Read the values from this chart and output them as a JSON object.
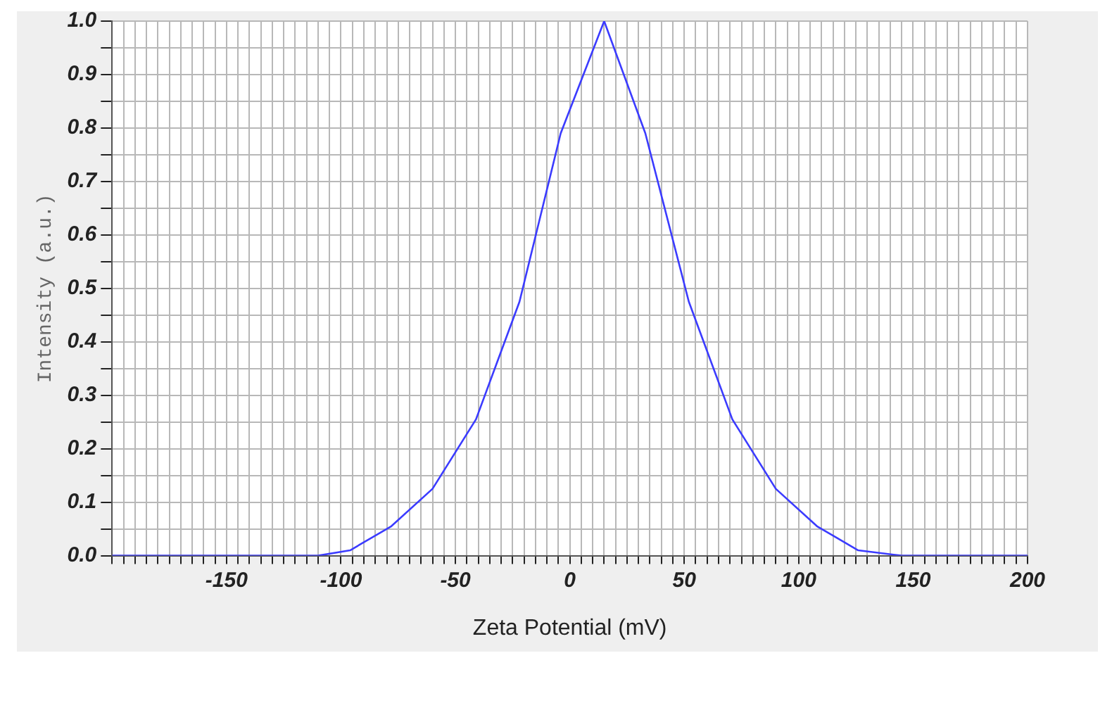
{
  "chart_data": {
    "type": "line",
    "xlabel": "Zeta Potential (mV)",
    "ylabel": "Intensity (a.u.)",
    "x": [
      -200,
      -110,
      -96,
      -78,
      -60,
      -41,
      -22,
      -4,
      15,
      33,
      52,
      71,
      90,
      108,
      126,
      145,
      200
    ],
    "series": [
      {
        "color": "#3b3bff",
        "values": [
          0,
          0,
          0.01,
          0.055,
          0.125,
          0.255,
          0.475,
          0.79,
          1.0,
          0.79,
          0.475,
          0.255,
          0.125,
          0.055,
          0.01,
          0,
          0
        ]
      }
    ],
    "xlim": [
      -200,
      200
    ],
    "xticks": [
      {
        "value": -200,
        "label": null
      },
      {
        "value": -195,
        "label": null
      },
      {
        "value": -190,
        "label": null
      },
      {
        "value": -185,
        "label": null
      },
      {
        "value": -180,
        "label": null
      },
      {
        "value": -175,
        "label": null
      },
      {
        "value": -170,
        "label": null
      },
      {
        "value": -165,
        "label": null
      },
      {
        "value": -160,
        "label": null
      },
      {
        "value": -155,
        "label": null
      },
      -150,
      {
        "value": -145,
        "label": null
      },
      {
        "value": -140,
        "label": null
      },
      {
        "value": -135,
        "label": null
      },
      {
        "value": -130,
        "label": null
      },
      {
        "value": -125,
        "label": null
      },
      {
        "value": -120,
        "label": null
      },
      {
        "value": -115,
        "label": null
      },
      {
        "value": -110,
        "label": null
      },
      {
        "value": -105,
        "label": null
      },
      -100,
      {
        "value": -95,
        "label": null
      },
      {
        "value": -90,
        "label": null
      },
      {
        "value": -85,
        "label": null
      },
      {
        "value": -80,
        "label": null
      },
      {
        "value": -75,
        "label": null
      },
      {
        "value": -70,
        "label": null
      },
      {
        "value": -65,
        "label": null
      },
      {
        "value": -60,
        "label": null
      },
      {
        "value": -55,
        "label": null
      },
      -50,
      {
        "value": -45,
        "label": null
      },
      {
        "value": -40,
        "label": null
      },
      {
        "value": -35,
        "label": null
      },
      {
        "value": -30,
        "label": null
      },
      {
        "value": -25,
        "label": null
      },
      {
        "value": -20,
        "label": null
      },
      {
        "value": -15,
        "label": null
      },
      {
        "value": -10,
        "label": null
      },
      {
        "value": -5,
        "label": null
      },
      0,
      {
        "value": 5,
        "label": null
      },
      {
        "value": 10,
        "label": null
      },
      {
        "value": 15,
        "label": null
      },
      {
        "value": 20,
        "label": null
      },
      {
        "value": 25,
        "label": null
      },
      {
        "value": 30,
        "label": null
      },
      {
        "value": 35,
        "label": null
      },
      {
        "value": 40,
        "label": null
      },
      {
        "value": 45,
        "label": null
      },
      50,
      {
        "value": 55,
        "label": null
      },
      {
        "value": 60,
        "label": null
      },
      {
        "value": 65,
        "label": null
      },
      {
        "value": 70,
        "label": null
      },
      {
        "value": 75,
        "label": null
      },
      {
        "value": 80,
        "label": null
      },
      {
        "value": 85,
        "label": null
      },
      {
        "value": 90,
        "label": null
      },
      {
        "value": 95,
        "label": null
      },
      100,
      {
        "value": 105,
        "label": null
      },
      {
        "value": 110,
        "label": null
      },
      {
        "value": 115,
        "label": null
      },
      {
        "value": 120,
        "label": null
      },
      {
        "value": 125,
        "label": null
      },
      {
        "value": 130,
        "label": null
      },
      {
        "value": 135,
        "label": null
      },
      {
        "value": 140,
        "label": null
      },
      {
        "value": 145,
        "label": null
      },
      150,
      {
        "value": 155,
        "label": null
      },
      {
        "value": 160,
        "label": null
      },
      {
        "value": 165,
        "label": null
      },
      {
        "value": 170,
        "label": null
      },
      {
        "value": 175,
        "label": null
      },
      {
        "value": 180,
        "label": null
      },
      {
        "value": 185,
        "label": null
      },
      {
        "value": 190,
        "label": null
      },
      {
        "value": 195,
        "label": null
      },
      200
    ],
    "ylim": [
      0,
      1
    ],
    "yticks": [
      {
        "value": 0,
        "label": "0.0"
      },
      {
        "value": 0.05,
        "label": null
      },
      {
        "value": 0.1,
        "label": "0.1"
      },
      {
        "value": 0.15,
        "label": null
      },
      {
        "value": 0.2,
        "label": "0.2"
      },
      {
        "value": 0.25,
        "label": null
      },
      {
        "value": 0.3,
        "label": "0.3"
      },
      {
        "value": 0.35,
        "label": null
      },
      {
        "value": 0.4,
        "label": "0.4"
      },
      {
        "value": 0.45,
        "label": null
      },
      {
        "value": 0.5,
        "label": "0.5"
      },
      {
        "value": 0.55,
        "label": null
      },
      {
        "value": 0.6,
        "label": "0.6"
      },
      {
        "value": 0.65,
        "label": null
      },
      {
        "value": 0.7,
        "label": "0.7"
      },
      {
        "value": 0.75,
        "label": null
      },
      {
        "value": 0.8,
        "label": "0.8"
      },
      {
        "value": 0.85,
        "label": null
      },
      {
        "value": 0.9,
        "label": "0.9"
      },
      {
        "value": 0.95,
        "label": null
      },
      {
        "value": 1,
        "label": "1.0"
      }
    ],
    "grid": true,
    "marker": "none",
    "line_style": "solid"
  }
}
